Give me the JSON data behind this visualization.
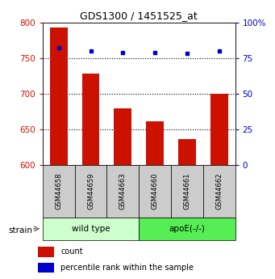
{
  "title": "GDS1300 / 1451525_at",
  "samples": [
    "GSM44658",
    "GSM44659",
    "GSM44663",
    "GSM44660",
    "GSM44661",
    "GSM44662"
  ],
  "counts": [
    793,
    728,
    679,
    661,
    636,
    700
  ],
  "percentiles": [
    82,
    80,
    79,
    79,
    78,
    80
  ],
  "ylim_left": [
    600,
    800
  ],
  "ylim_right": [
    0,
    100
  ],
  "yticks_left": [
    600,
    650,
    700,
    750,
    800
  ],
  "yticks_right": [
    0,
    25,
    50,
    75,
    100
  ],
  "ytick_labels_right": [
    "0",
    "25",
    "50",
    "75",
    "100%"
  ],
  "bar_color": "#cc1100",
  "dot_color": "#0000cc",
  "bar_width": 0.55,
  "group1_label": "wild type",
  "group2_label": "apoE(-/-)",
  "group1_color": "#ccffcc",
  "group2_color": "#55ee55",
  "strain_label": "strain",
  "legend_count": "count",
  "legend_pct": "percentile rank within the sample",
  "dotted_line_color": "#000000",
  "ylabel_left_color": "#cc1100",
  "ylabel_right_color": "#0000cc",
  "grid_yticks": [
    650,
    700,
    750
  ],
  "sample_box_color": "#cccccc",
  "fig_width": 3.41,
  "fig_height": 3.45,
  "dpi": 100
}
